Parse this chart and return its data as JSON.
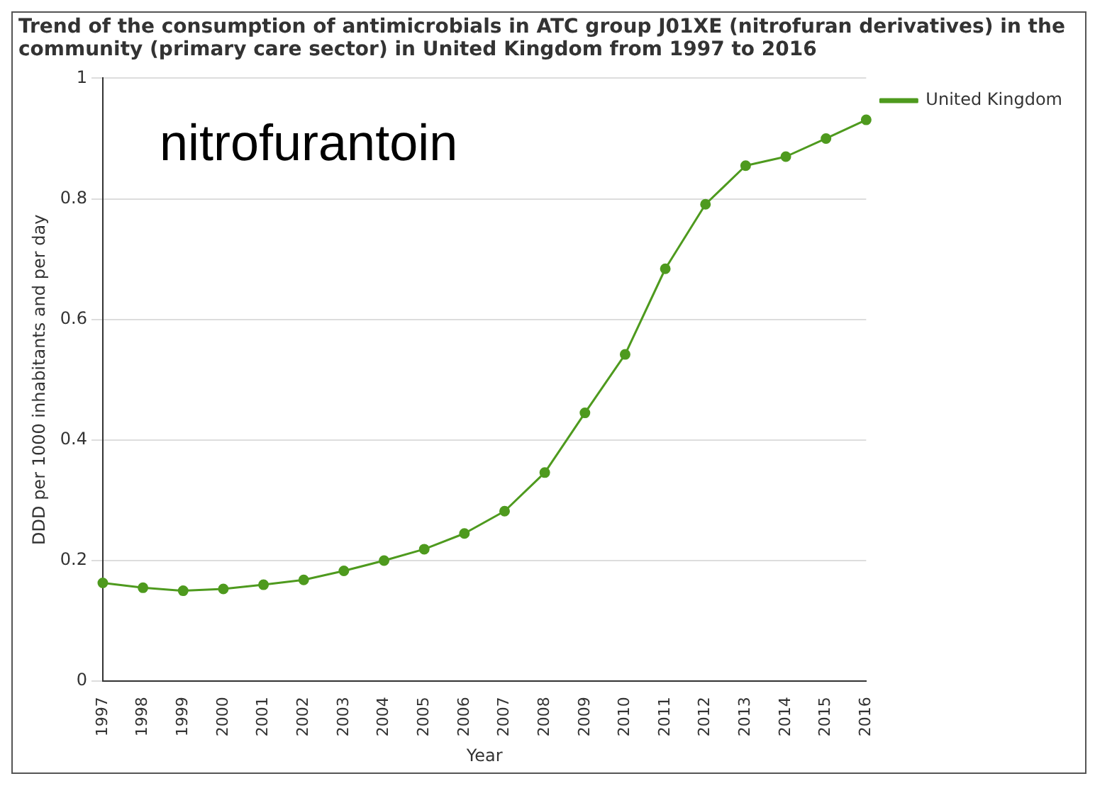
{
  "chart_data": {
    "type": "line",
    "title": "Trend of the consumption of antimicrobials in ATC group J01XE (nitrofuran derivatives) in the community (primary care sector) in United Kingdom from 1997 to 2016",
    "xlabel": "Year",
    "ylabel": "DDD per 1000 inhabitants and per day",
    "annotations": [
      "nitrofurantoin"
    ],
    "categories": [
      "1997",
      "1998",
      "1999",
      "2000",
      "2001",
      "2002",
      "2003",
      "2004",
      "2005",
      "2006",
      "2007",
      "2008",
      "2009",
      "2010",
      "2011",
      "2012",
      "2013",
      "2014",
      "2015",
      "2016"
    ],
    "series": [
      {
        "name": "United Kingdom",
        "color": "#4e9a1e",
        "values": [
          0.163,
          0.155,
          0.15,
          0.153,
          0.16,
          0.168,
          0.183,
          0.2,
          0.219,
          0.245,
          0.282,
          0.346,
          0.445,
          0.542,
          0.684,
          0.791,
          0.855,
          0.87,
          0.9,
          0.931
        ]
      }
    ],
    "ylim": [
      0,
      1
    ],
    "yticks": [
      0,
      0.2,
      0.4,
      0.6,
      0.8,
      1
    ],
    "grid": "y",
    "legend": "top right",
    "marker": "circle",
    "line_style": "solid"
  }
}
